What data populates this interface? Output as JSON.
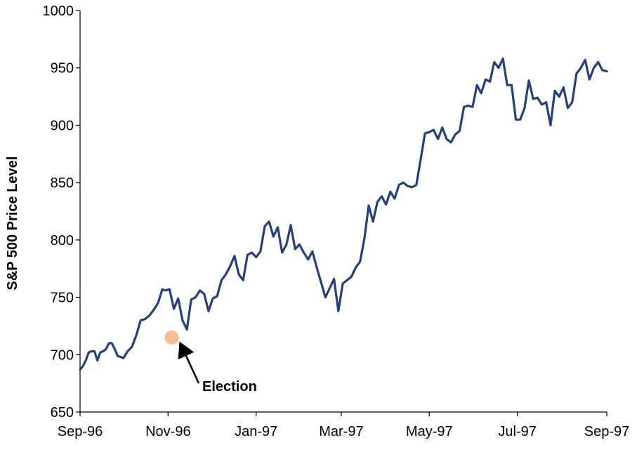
{
  "chart_data": {
    "type": "line",
    "title": "",
    "xlabel": "",
    "ylabel": "S&P 500 Price Level",
    "ylim": [
      650,
      1000
    ],
    "y_ticks": [
      650,
      700,
      750,
      800,
      850,
      900,
      950,
      1000
    ],
    "y_tick_labels": [
      "650",
      "700",
      "750",
      "800",
      "850",
      "900",
      "950",
      "1000"
    ],
    "x_range": [
      "1996-09-01",
      "1997-09-01"
    ],
    "x_ticks": [
      "1996-09-01",
      "1996-11-01",
      "1997-01-01",
      "1997-03-01",
      "1997-05-01",
      "1997-07-01",
      "1997-09-01"
    ],
    "x_tick_labels": [
      "Sep-96",
      "Nov-96",
      "Jan-97",
      "Mar-97",
      "May-97",
      "Jul-97",
      "Sep-97"
    ],
    "grid": false,
    "legend": "none",
    "line_color": "#27407A",
    "series": [
      {
        "x": [
          "1996-09-01",
          "1996-09-03",
          "1996-09-05",
          "1996-09-07",
          "1996-09-09",
          "1996-09-11",
          "1996-09-13",
          "1996-09-15",
          "1996-09-17",
          "1996-09-19",
          "1996-09-21",
          "1996-09-23",
          "1996-09-25",
          "1996-09-27",
          "1996-10-01",
          "1996-10-04",
          "1996-10-07",
          "1996-10-10",
          "1996-10-13",
          "1996-10-16",
          "1996-10-19",
          "1996-10-22",
          "1996-10-25",
          "1996-10-28",
          "1996-10-30",
          "1996-11-02",
          "1996-11-05",
          "1996-11-08",
          "1996-11-11",
          "1996-11-14",
          "1996-11-17",
          "1996-11-20",
          "1996-11-23",
          "1996-11-26",
          "1996-11-29",
          "1996-12-02",
          "1996-12-05",
          "1996-12-08",
          "1996-12-11",
          "1996-12-14",
          "1996-12-17",
          "1996-12-20",
          "1996-12-23",
          "1996-12-26",
          "1996-12-29",
          "1997-01-01",
          "1997-01-04",
          "1997-01-07",
          "1997-01-10",
          "1997-01-13",
          "1997-01-16",
          "1997-01-19",
          "1997-01-22",
          "1997-01-25",
          "1997-01-28",
          "1997-01-31",
          "1997-02-03",
          "1997-02-06",
          "1997-02-09",
          "1997-02-12",
          "1997-02-15",
          "1997-02-18",
          "1997-02-21",
          "1997-02-24",
          "1997-02-27",
          "1997-03-02",
          "1997-03-05",
          "1997-03-08",
          "1997-03-11",
          "1997-03-14",
          "1997-03-17",
          "1997-03-20",
          "1997-03-23",
          "1997-03-26",
          "1997-03-29",
          "1997-04-01",
          "1997-04-04",
          "1997-04-07",
          "1997-04-10",
          "1997-04-13",
          "1997-04-16",
          "1997-04-19",
          "1997-04-22",
          "1997-04-25",
          "1997-04-28",
          "1997-05-01",
          "1997-05-04",
          "1997-05-07",
          "1997-05-10",
          "1997-05-13",
          "1997-05-16",
          "1997-05-19",
          "1997-05-22",
          "1997-05-25",
          "1997-05-28",
          "1997-05-31",
          "1997-06-03",
          "1997-06-06",
          "1997-06-09",
          "1997-06-12",
          "1997-06-15",
          "1997-06-18",
          "1997-06-21",
          "1997-06-24",
          "1997-06-27",
          "1997-06-30",
          "1997-07-03",
          "1997-07-06",
          "1997-07-09",
          "1997-07-12",
          "1997-07-15",
          "1997-07-18",
          "1997-07-21",
          "1997-07-24",
          "1997-07-27",
          "1997-07-30",
          "1997-08-02",
          "1997-08-05",
          "1997-08-08",
          "1997-08-11",
          "1997-08-14",
          "1997-08-17",
          "1997-08-20",
          "1997-08-23",
          "1997-08-26",
          "1997-08-29",
          "1997-09-01"
        ],
        "values": [
          687,
          690,
          695,
          702,
          703,
          703,
          695,
          702,
          703,
          705,
          710,
          710,
          705,
          699,
          697,
          703,
          707,
          717,
          730,
          731,
          734,
          739,
          745,
          757,
          756,
          757,
          740,
          749,
          730,
          722,
          748,
          750,
          756,
          753,
          738,
          749,
          751,
          765,
          770,
          777,
          786,
          770,
          765,
          787,
          789,
          785,
          790,
          812,
          816,
          803,
          811,
          789,
          796,
          813,
          792,
          796,
          789,
          783,
          790,
          776,
          763,
          750,
          758,
          766,
          738,
          762,
          765,
          768,
          776,
          781,
          801,
          830,
          816,
          833,
          838,
          831,
          842,
          836,
          848,
          850,
          847,
          846,
          848,
          870,
          893,
          894,
          896,
          888,
          898,
          888,
          885,
          892,
          895,
          916,
          917,
          916,
          935,
          928,
          940,
          938,
          955,
          950,
          958,
          935,
          935,
          905,
          905,
          915,
          939,
          923,
          924,
          918,
          920,
          900,
          930,
          925,
          933,
          915,
          920,
          945,
          950,
          957,
          940,
          950,
          955,
          948,
          947
        ]
      }
    ],
    "annotations": [
      {
        "text": "Election",
        "x": "1996-11-05",
        "y": 715
      }
    ],
    "marker_color": "#F4B183"
  }
}
